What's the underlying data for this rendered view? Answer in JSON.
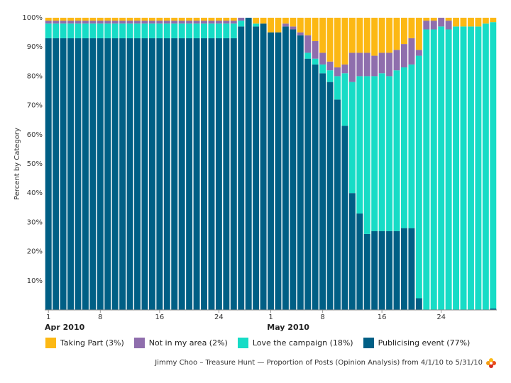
{
  "chart_data": {
    "type": "bar",
    "stacked": true,
    "ylabel": "Percent by Category",
    "ylim": [
      0,
      100
    ],
    "yticks": [
      "10%",
      "20%",
      "30%",
      "40%",
      "50%",
      "60%",
      "70%",
      "80%",
      "90%",
      "100%"
    ],
    "x_ticks": [
      {
        "label": "1",
        "day": 1
      },
      {
        "label": "8",
        "day": 8
      },
      {
        "label": "16",
        "day": 16
      },
      {
        "label": "24",
        "day": 24
      },
      {
        "label": "1",
        "day": 31
      },
      {
        "label": "8",
        "day": 38
      },
      {
        "label": "16",
        "day": 46
      },
      {
        "label": "24",
        "day": 54
      }
    ],
    "months": [
      {
        "label": "Apr 2010",
        "day": 1
      },
      {
        "label": "May 2010",
        "day": 31
      }
    ],
    "categories": [
      "4/1",
      "4/2",
      "4/3",
      "4/4",
      "4/5",
      "4/6",
      "4/7",
      "4/8",
      "4/9",
      "4/10",
      "4/11",
      "4/12",
      "4/13",
      "4/14",
      "4/15",
      "4/16",
      "4/17",
      "4/18",
      "4/19",
      "4/20",
      "4/21",
      "4/22",
      "4/23",
      "4/24",
      "4/25",
      "4/26",
      "4/27",
      "4/28",
      "4/29",
      "4/30",
      "5/1",
      "5/2",
      "5/3",
      "5/4",
      "5/5",
      "5/6",
      "5/7",
      "5/8",
      "5/9",
      "5/10",
      "5/11",
      "5/12",
      "5/13",
      "5/14",
      "5/15",
      "5/16",
      "5/17",
      "5/18",
      "5/19",
      "5/20",
      "5/21",
      "5/22",
      "5/23",
      "5/24",
      "5/25",
      "5/26",
      "5/27",
      "5/28",
      "5/29",
      "5/30",
      "5/31"
    ],
    "series": [
      {
        "name": "Publicising event (77%)",
        "color": "#005f85",
        "values": [
          93,
          93,
          93,
          93,
          93,
          93,
          93,
          93,
          93,
          93,
          93,
          93,
          93,
          93,
          93,
          93,
          93,
          93,
          93,
          93,
          93,
          93,
          93,
          93,
          93,
          93,
          97,
          100,
          97,
          98,
          95,
          95,
          97,
          96,
          94,
          86,
          84,
          81,
          78,
          72,
          63,
          40,
          33,
          26,
          27,
          27,
          27,
          27,
          28,
          28,
          4,
          0,
          0,
          0,
          0,
          0,
          0,
          0,
          0,
          0,
          0.5
        ]
      },
      {
        "name": "Love the campaign (18%)",
        "color": "#17dcc6",
        "values": [
          5,
          5,
          5,
          5,
          5,
          5,
          5,
          5,
          5,
          5,
          5,
          5,
          5,
          5,
          5,
          5,
          5,
          5,
          5,
          5,
          5,
          5,
          5,
          5,
          5,
          5,
          2,
          0,
          1,
          0,
          0,
          0,
          0,
          0,
          0,
          2,
          2,
          3,
          4,
          8,
          18,
          38,
          47,
          54,
          53,
          54,
          53,
          55,
          55,
          56,
          83,
          96,
          96,
          97,
          96,
          97,
          97,
          97,
          97,
          98,
          98
        ]
      },
      {
        "name": "Not in my area (2%)",
        "color": "#8f6ead",
        "values": [
          1,
          1,
          1,
          1,
          1,
          1,
          1,
          1,
          1,
          1,
          1,
          1,
          1,
          1,
          1,
          1,
          1,
          1,
          1,
          1,
          1,
          1,
          1,
          1,
          1,
          1,
          1,
          0,
          0,
          0,
          0,
          0,
          1,
          1,
          1,
          6,
          6,
          4,
          3,
          3,
          3,
          10,
          8,
          8,
          7,
          7,
          8,
          7,
          8,
          9,
          2,
          3,
          3,
          3,
          3,
          0,
          0,
          0,
          0,
          0,
          0
        ]
      },
      {
        "name": "Taking Part (3%)",
        "color": "#fcb814",
        "values": [
          1,
          1,
          1,
          1,
          1,
          1,
          1,
          1,
          1,
          1,
          1,
          1,
          1,
          1,
          1,
          1,
          1,
          1,
          1,
          1,
          1,
          1,
          1,
          1,
          1,
          1,
          0,
          0,
          2,
          2,
          5,
          5,
          2,
          3,
          5,
          6,
          8,
          12,
          15,
          17,
          16,
          12,
          12,
          12,
          13,
          12,
          12,
          11,
          9,
          7,
          11,
          1,
          1,
          0,
          1,
          3,
          3,
          3,
          3,
          2,
          1.5
        ]
      }
    ]
  },
  "legend": [
    {
      "label": "Taking Part (3%)",
      "color": "#fcb814"
    },
    {
      "label": "Not in my area (2%)",
      "color": "#8f6ead"
    },
    {
      "label": "Love the campaign (18%)",
      "color": "#17dcc6"
    },
    {
      "label": "Publicising event (77%)",
      "color": "#005f85"
    }
  ],
  "caption": "Jimmy Choo – Treasure Hunt — Proportion of Posts (Opinion Analysis) from 4/1/10 to 5/31/10",
  "logo_icon": "flower-logo-icon"
}
